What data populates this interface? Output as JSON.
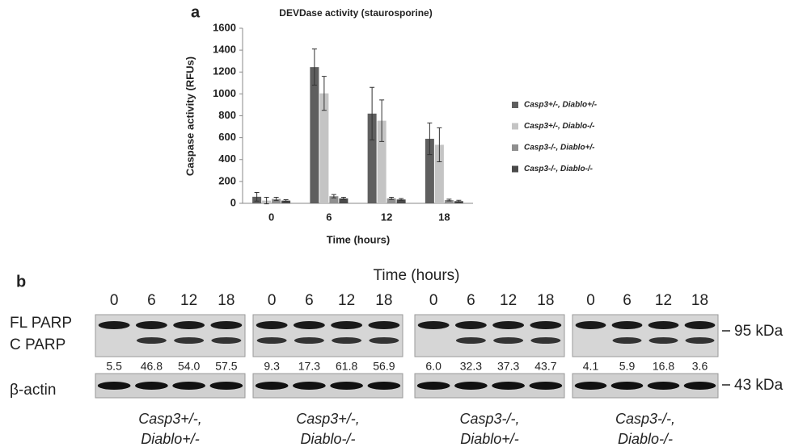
{
  "panel_labels": [
    "a",
    "b"
  ],
  "chart_data": {
    "type": "bar",
    "title": "DEVDase activity (staurosporine)",
    "x_label": "Time (hours)",
    "y_label": "Caspase activity (RFUs)",
    "categories": [
      "0",
      "6",
      "12",
      "18"
    ],
    "series": [
      {
        "name": "Casp3+/-, Diablo+/-",
        "color": "#5f5f5f",
        "values": [
          60,
          1245,
          820,
          590
        ],
        "error": [
          40,
          165,
          240,
          145
        ]
      },
      {
        "name": "Casp3+/-, Diablo-/-",
        "color": "#c4c4c4",
        "values": [
          25,
          1005,
          755,
          535
        ],
        "error": [
          30,
          155,
          190,
          155
        ]
      },
      {
        "name": "Casp3-/-, Diablo+/-",
        "color": "#8f8f8f",
        "values": [
          40,
          65,
          45,
          30
        ],
        "error": [
          15,
          15,
          10,
          8
        ]
      },
      {
        "name": "Casp3-/-, Diablo-/-",
        "color": "#4a4a4a",
        "values": [
          25,
          45,
          35,
          20
        ],
        "error": [
          8,
          10,
          8,
          8
        ]
      }
    ],
    "ylim": [
      0,
      1600
    ],
    "yticks": [
      0,
      200,
      400,
      600,
      800,
      1000,
      1200,
      1400,
      1600
    ],
    "grid": false,
    "legend": "right"
  },
  "blot": {
    "title": "Time (hours)",
    "row_labels": [
      "FL PARP",
      "C PARP",
      "β-actin"
    ],
    "markers": [
      "95 kDa",
      "43 kDa"
    ],
    "groups": [
      {
        "times": [
          "0",
          "6",
          "12",
          "18"
        ],
        "quant": [
          "5.5",
          "46.8",
          "54.0",
          "57.5"
        ],
        "label": [
          "Casp3+/-,",
          "Diablo+/-"
        ]
      },
      {
        "times": [
          "0",
          "6",
          "12",
          "18"
        ],
        "quant": [
          "9.3",
          "17.3",
          "61.8",
          "56.9"
        ],
        "label": [
          "Casp3+/-,",
          "Diablo-/-"
        ]
      },
      {
        "times": [
          "0",
          "6",
          "12",
          "18"
        ],
        "quant": [
          "6.0",
          "32.3",
          "37.3",
          "43.7"
        ],
        "label": [
          "Casp3-/-,",
          "Diablo+/-"
        ]
      },
      {
        "times": [
          "0",
          "6",
          "12",
          "18"
        ],
        "quant": [
          "4.1",
          "5.9",
          "16.8",
          "3.6"
        ],
        "label": [
          "Casp3-/-,",
          "Diablo-/-"
        ]
      }
    ]
  }
}
